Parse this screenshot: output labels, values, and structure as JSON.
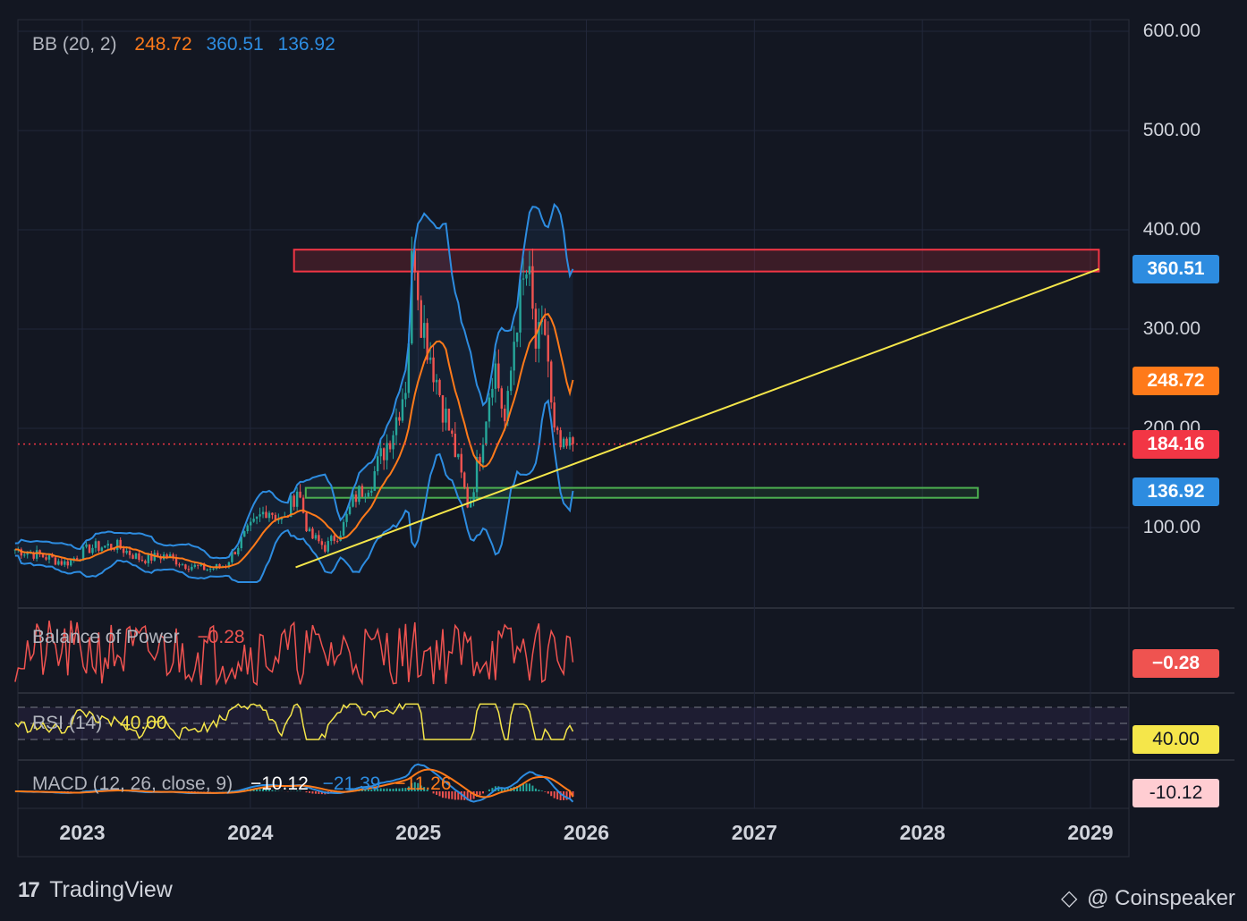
{
  "footer": {
    "brand_left": "TradingView",
    "brand_right": "@ Coinspeaker"
  },
  "colors": {
    "background": "#131722",
    "grid": "#22273a",
    "candle_up": "#26a69a",
    "candle_down": "#ef5350",
    "bb_basis": "#ff7a1a",
    "bb_bands": "#2d8ce0",
    "trendline": "#f5e64a",
    "resistance_zone": "#f23645",
    "support_zone": "#4caf50",
    "bop": "#ef5350",
    "rsi": "#f5e64a",
    "macd": "#2d8ce0",
    "signal": "#ff7a1a"
  },
  "legends": {
    "bb": {
      "label": "BB (20, 2)",
      "basis": "248.72",
      "upper": "360.51",
      "lower": "136.92"
    },
    "bop": {
      "label": "Balance of Power",
      "value": "−0.28"
    },
    "rsi": {
      "label": "RSI (14)",
      "value": "40.00"
    },
    "macd": {
      "label": "MACD (12, 26, close, 9)",
      "hist": "−10.12",
      "macd": "−21.39",
      "signal": "−11.26"
    }
  },
  "badges": {
    "upper": "360.51",
    "basis": "248.72",
    "last_price": "184.16",
    "lower": "136.92",
    "bop": "−0.28",
    "rsi": "40.00",
    "macd": "-10.12"
  },
  "chart_data": {
    "type": "candlestick",
    "price_axis": {
      "min": 40,
      "max": 600,
      "ticks": [
        "600.00",
        "500.00",
        "400.00",
        "300.00",
        "200.00",
        "100.00"
      ]
    },
    "x_axis": {
      "ticks": [
        "2023",
        "2024",
        "2025",
        "2026",
        "2027",
        "2028",
        "2029"
      ],
      "start": 2022.6,
      "end": 2029.0
    },
    "last_price": 184.16,
    "bollinger": {
      "period": 20,
      "mult": 2,
      "basis": 248.72,
      "upper": 360.51,
      "lower": 136.92
    },
    "resistance_zone": {
      "from": 2024.26,
      "to": 2029.05,
      "low": 358,
      "high": 380
    },
    "support_zone": {
      "from": 2024.33,
      "to": 2028.33,
      "low": 130,
      "high": 140
    },
    "trendline": {
      "x1": 2024.27,
      "y1": 60,
      "x2": 2029.05,
      "y2": 360.51
    },
    "price_series": [
      {
        "t": 2022.6,
        "v": 78
      },
      {
        "t": 2022.75,
        "v": 72
      },
      {
        "t": 2022.9,
        "v": 64
      },
      {
        "t": 2023.05,
        "v": 80
      },
      {
        "t": 2023.2,
        "v": 82
      },
      {
        "t": 2023.35,
        "v": 68
      },
      {
        "t": 2023.5,
        "v": 72
      },
      {
        "t": 2023.6,
        "v": 63
      },
      {
        "t": 2023.75,
        "v": 58
      },
      {
        "t": 2023.85,
        "v": 62
      },
      {
        "t": 2023.95,
        "v": 88
      },
      {
        "t": 2024.1,
        "v": 120
      },
      {
        "t": 2024.2,
        "v": 105
      },
      {
        "t": 2024.28,
        "v": 140
      },
      {
        "t": 2024.35,
        "v": 92
      },
      {
        "t": 2024.45,
        "v": 80
      },
      {
        "t": 2024.55,
        "v": 100
      },
      {
        "t": 2024.62,
        "v": 130
      },
      {
        "t": 2024.72,
        "v": 148
      },
      {
        "t": 2024.85,
        "v": 200
      },
      {
        "t": 2024.93,
        "v": 250
      },
      {
        "t": 2024.97,
        "v": 395
      },
      {
        "t": 2025.02,
        "v": 310
      },
      {
        "t": 2025.08,
        "v": 270
      },
      {
        "t": 2025.15,
        "v": 220
      },
      {
        "t": 2025.22,
        "v": 175
      },
      {
        "t": 2025.3,
        "v": 120
      },
      {
        "t": 2025.37,
        "v": 180
      },
      {
        "t": 2025.45,
        "v": 270
      },
      {
        "t": 2025.52,
        "v": 200
      },
      {
        "t": 2025.58,
        "v": 310
      },
      {
        "t": 2025.65,
        "v": 360
      },
      {
        "t": 2025.7,
        "v": 280
      },
      {
        "t": 2025.76,
        "v": 300
      },
      {
        "t": 2025.8,
        "v": 195
      },
      {
        "t": 2025.86,
        "v": 175
      },
      {
        "t": 2025.92,
        "v": 184.16
      }
    ],
    "indicators": {
      "bop": {
        "min": -1,
        "max": 1,
        "last": -0.28
      },
      "rsi": {
        "period": 14,
        "min": 20,
        "max": 80,
        "bands": [
          30,
          50,
          70
        ],
        "last": 40.0
      },
      "macd": {
        "fast": 12,
        "slow": 26,
        "signal_period": 9,
        "histogram": -10.12,
        "macd": -21.39,
        "signal": -11.26
      }
    }
  }
}
